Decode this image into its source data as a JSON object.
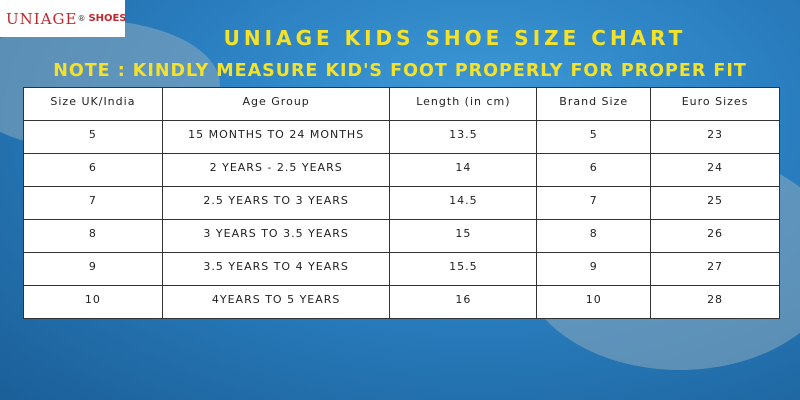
{
  "logo": {
    "brand": "UNIAGE",
    "mark": "®",
    "suffix": "SHOES"
  },
  "header": {
    "title": "UNIAGE KIDS SHOE SIZE CHART",
    "note": "NOTE : KINDLY MEASURE KID'S FOOT PROPERLY FOR PROPER FIT"
  },
  "table": {
    "columns": [
      "Size UK/India",
      "Age Group",
      "Length (in cm)",
      "Brand Size",
      "Euro Sizes"
    ],
    "rows": [
      [
        "5",
        "15 MONTHS TO 24 MONTHS",
        "13.5",
        "5",
        "23"
      ],
      [
        "6",
        "2 YEARS - 2.5 YEARS",
        "14",
        "6",
        "24"
      ],
      [
        "7",
        "2.5 YEARS TO 3 YEARS",
        "14.5",
        "7",
        "25"
      ],
      [
        "8",
        "3 YEARS TO 3.5 YEARS",
        "15",
        "8",
        "26"
      ],
      [
        "9",
        "3.5 YEARS TO 4 YEARS",
        "15.5",
        "9",
        "27"
      ],
      [
        "10",
        "4YEARS TO 5 YEARS",
        "16",
        "10",
        "28"
      ]
    ]
  }
}
